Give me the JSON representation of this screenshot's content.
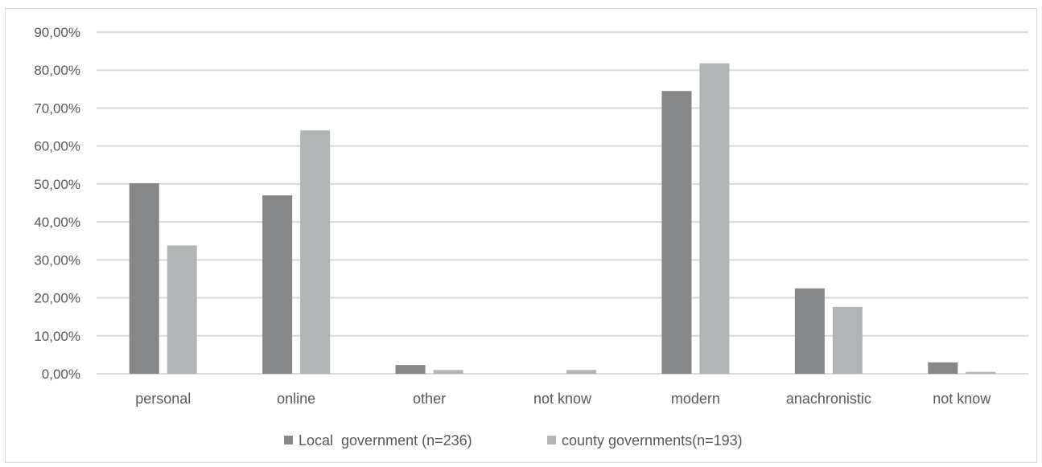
{
  "chart_data": {
    "type": "bar",
    "title": "",
    "xlabel": "",
    "ylabel": "",
    "categories": [
      "personal",
      "online",
      "other",
      "not know",
      "modern",
      "anachronistic",
      "not know"
    ],
    "series": [
      {
        "name": "Local  government (n=236)",
        "color": "#858789",
        "values": [
          50.2,
          47.0,
          2.3,
          0.0,
          74.5,
          22.5,
          3.0
        ]
      },
      {
        "name": "county governments(n=193)",
        "color": "#b2b5b6",
        "values": [
          33.8,
          64.1,
          1.0,
          1.0,
          81.8,
          17.6,
          0.5
        ]
      }
    ],
    "ylim": [
      0,
      90
    ],
    "yticks": [
      "0,00%",
      "10,00%",
      "20,00%",
      "30,00%",
      "40,00%",
      "50,00%",
      "60,00%",
      "70,00%",
      "80,00%",
      "90,00%"
    ],
    "grid": true,
    "legend_position": "bottom"
  }
}
